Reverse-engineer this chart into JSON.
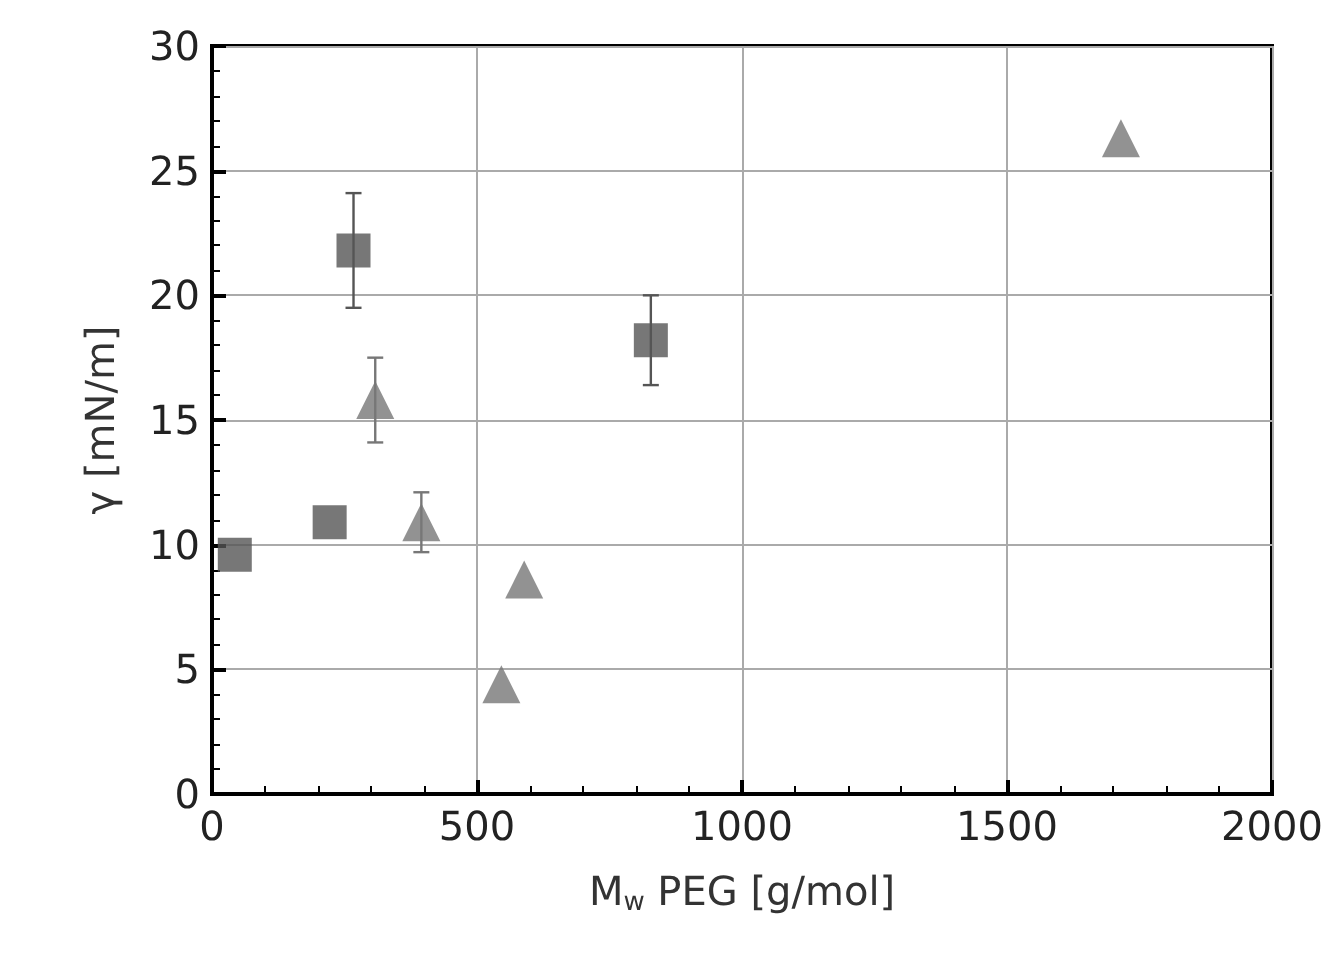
{
  "chart_data": {
    "type": "scatter",
    "xlabel": "M$_{w}$ PEG [g/mol]",
    "ylabel": "γ [mN/m]",
    "xlim": [
      0,
      2000
    ],
    "xticks": [
      0,
      500,
      1000,
      1500,
      2000
    ],
    "ylim": [
      0,
      30
    ],
    "yticks": [
      0,
      5,
      10,
      15,
      20,
      25,
      30
    ],
    "grid": true,
    "series": [
      {
        "color": "#555555",
        "marker": "square",
        "x": [
          43,
          222,
          267,
          828
        ],
        "values": [
          9.6,
          10.9,
          21.8,
          18.2
        ],
        "errors": [
          null,
          null,
          2.3,
          1.8
        ]
      },
      {
        "color": "#777777",
        "marker": "triangle",
        "x": [
          308,
          395,
          546,
          589,
          1715
        ],
        "values": [
          15.8,
          10.9,
          4.4,
          8.6,
          26.3
        ],
        "errors": [
          1.7,
          1.2,
          null,
          null,
          null
        ]
      }
    ]
  }
}
